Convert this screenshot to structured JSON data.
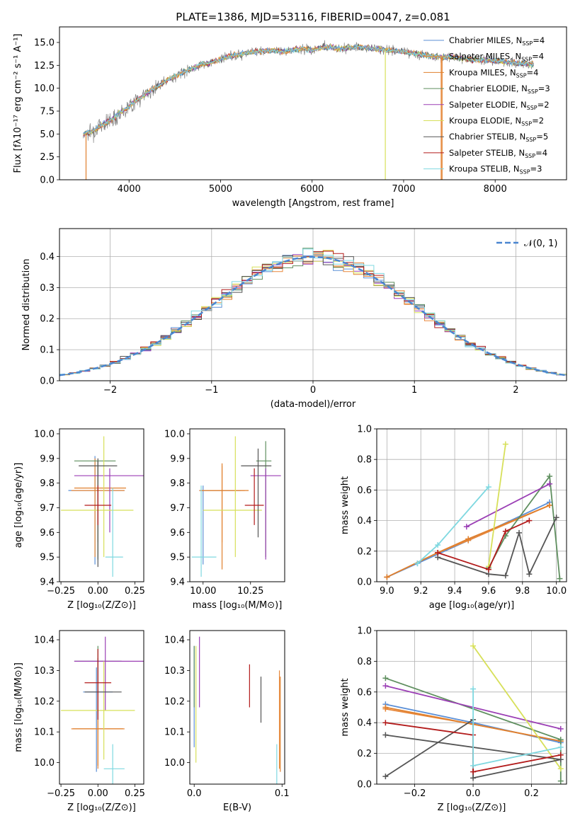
{
  "figure": {
    "title": "PLATE=1386, MJD=53116, FIBERID=0047, z=0.081"
  },
  "colors": [
    "#5b8fd6",
    "#e8873a",
    "#e0802e",
    "#5f8f5f",
    "#9b3fb5",
    "#d7e05a",
    "#555555",
    "#b31b1b",
    "#7fd8e0"
  ],
  "chart_data": [
    {
      "id": "spectrum",
      "type": "line",
      "xlabel": "wavelength [Angstrom, rest frame]",
      "ylabel": "Flux [fλ10⁻¹⁷ erg cm⁻² s⁻¹ A⁻¹]",
      "xlim": [
        3240,
        8780
      ],
      "ylim": [
        0,
        16.7
      ],
      "xticks": [
        4000,
        5000,
        6000,
        7000,
        8000
      ],
      "yticks": [
        0.0,
        2.5,
        5.0,
        7.5,
        10.0,
        12.5,
        15.0
      ],
      "x": [
        3500,
        3600,
        3700,
        3800,
        3900,
        4000,
        4100,
        4200,
        4300,
        4400,
        4500,
        4600,
        4700,
        4800,
        4900,
        5000,
        5100,
        5200,
        5300,
        5400,
        5500,
        5600,
        5700,
        5800,
        5900,
        6000,
        6100,
        6200,
        6300,
        6400,
        6500,
        6600,
        6700,
        6800,
        6900,
        7000,
        7100,
        7200,
        7300,
        7400,
        7500,
        7600,
        7700,
        7800,
        7900,
        8000,
        8100,
        8200,
        8300,
        8400
      ],
      "y": [
        5.0,
        5.3,
        6.0,
        6.5,
        7.3,
        8.0,
        8.8,
        9.5,
        10.1,
        10.8,
        11.3,
        11.8,
        12.2,
        12.6,
        12.8,
        13.2,
        13.5,
        13.7,
        13.9,
        14.0,
        14.1,
        14.1,
        14.0,
        14.2,
        14.3,
        14.2,
        14.4,
        14.5,
        14.3,
        14.4,
        14.5,
        14.4,
        14.3,
        14.2,
        14.1,
        14.0,
        13.8,
        13.7,
        13.5,
        13.4,
        13.4,
        13.3,
        13.2,
        13.1,
        13.1,
        13.0,
        12.9,
        12.8,
        12.7,
        12.6
      ],
      "legend_position": "right",
      "legend": [
        {
          "label": "Chabrier MILES, N",
          "sub": "SSP",
          "eq": "=4"
        },
        {
          "label": "Salpeter MILES, N",
          "sub": "SSP",
          "eq": "=4"
        },
        {
          "label": "Kroupa MILES, N",
          "sub": "SSP",
          "eq": "=4"
        },
        {
          "label": "Chabrier ELODIE, N",
          "sub": "SSP",
          "eq": "=3"
        },
        {
          "label": "Salpeter ELODIE, N",
          "sub": "SSP",
          "eq": "=2"
        },
        {
          "label": "Kroupa ELODIE, N",
          "sub": "SSP",
          "eq": "=2"
        },
        {
          "label": "Chabrier STELIB, N",
          "sub": "SSP",
          "eq": "=5"
        },
        {
          "label": "Salpeter STELIB, N",
          "sub": "SSP",
          "eq": "=4"
        },
        {
          "label": "Kroupa STELIB, N",
          "sub": "SSP",
          "eq": "=3"
        }
      ]
    },
    {
      "id": "residuals",
      "type": "line",
      "xlabel": "(data-model)/error",
      "ylabel": "Normed distribution",
      "xlim": [
        -2.5,
        2.5
      ],
      "ylim": [
        0,
        0.49
      ],
      "xticks": [
        -2,
        -1,
        0,
        1,
        2
      ],
      "xtick_labels": [
        "−2",
        "−1",
        "0",
        "1",
        "2"
      ],
      "yticks": [
        0.0,
        0.1,
        0.2,
        0.3,
        0.4
      ],
      "legend": "𝒩(0, 1)",
      "legend_position": "top-right",
      "grid": true
    },
    {
      "id": "z-age",
      "type": "scatter",
      "xlabel": "Z [log₁₀(Z/Z⊙)]",
      "ylabel": "age  [log₁₀(age/yr)]",
      "xlim": [
        -0.26,
        0.31
      ],
      "ylim": [
        9.4,
        10.02
      ],
      "xticks": [
        -0.25,
        0.0,
        0.25
      ],
      "xtick_labels": [
        "−0.25",
        "0.00",
        "0.25"
      ],
      "yticks": [
        9.4,
        9.5,
        9.6,
        9.7,
        9.8,
        9.9,
        10.0
      ],
      "points": [
        {
          "x": -0.02,
          "y": 9.77,
          "xe": [
            -0.2,
            0.18
          ],
          "ye": [
            9.47,
            9.91
          ]
        },
        {
          "x": 0.0,
          "y": 9.77,
          "xe": [
            -0.18,
            0.18
          ],
          "ye": [
            9.56,
            9.89
          ]
        },
        {
          "x": -0.02,
          "y": 9.78,
          "xe": [
            -0.16,
            0.19
          ],
          "ye": [
            9.5,
            9.9
          ]
        },
        {
          "x": 0.0,
          "y": 9.89,
          "xe": [
            -0.16,
            0.12
          ],
          "ye": [
            9.49,
            9.89
          ]
        },
        {
          "x": 0.08,
          "y": 9.83,
          "xe": [
            -0.16,
            0.31
          ],
          "ye": [
            9.6,
            9.86
          ]
        },
        {
          "x": 0.04,
          "y": 9.69,
          "xe": [
            -0.25,
            0.24
          ],
          "ye": [
            9.5,
            9.99
          ]
        },
        {
          "x": 0.0,
          "y": 9.87,
          "xe": [
            -0.13,
            0.13
          ],
          "ye": [
            9.46,
            9.9
          ]
        },
        {
          "x": 0.0,
          "y": 9.71,
          "xe": [
            -0.09,
            0.09
          ],
          "ye": [
            9.63,
            9.79
          ]
        },
        {
          "x": 0.1,
          "y": 9.5,
          "xe": [
            0.05,
            0.17
          ],
          "ye": [
            9.42,
            9.78
          ]
        }
      ]
    },
    {
      "id": "mass-age",
      "type": "scatter",
      "xlabel": "mass [log₁₀(M/M⊙)]",
      "xlim": [
        9.93,
        10.43
      ],
      "ylim": [
        9.4,
        10.02
      ],
      "xticks": [
        10.0,
        10.25
      ],
      "xtick_labels": [
        "10.00",
        "10.25"
      ],
      "yticks": [
        9.4,
        9.5,
        9.6,
        9.7,
        9.8,
        9.9,
        10.0
      ],
      "points": [
        {
          "x": 10.0,
          "y": 9.77,
          "xe": [
            9.98,
            10.2
          ],
          "ye": [
            9.47,
            9.79
          ]
        },
        {
          "x": 10.1,
          "y": 9.77,
          "xe": [
            9.98,
            10.22
          ],
          "ye": [
            9.56,
            9.87
          ]
        },
        {
          "x": 10.1,
          "y": 9.77,
          "xe": [
            9.99,
            10.24
          ],
          "ye": [
            9.45,
            9.88
          ]
        },
        {
          "x": 10.33,
          "y": 9.89,
          "xe": [
            10.28,
            10.36
          ],
          "ye": [
            9.5,
            9.97
          ]
        },
        {
          "x": 10.33,
          "y": 9.83,
          "xe": [
            10.25,
            10.41
          ],
          "ye": [
            9.49,
            9.86
          ]
        },
        {
          "x": 10.17,
          "y": 9.69,
          "xe": [
            10.0,
            10.31
          ],
          "ye": [
            9.5,
            9.99
          ]
        },
        {
          "x": 10.29,
          "y": 9.87,
          "xe": [
            10.2,
            10.36
          ],
          "ye": [
            9.58,
            9.94
          ]
        },
        {
          "x": 10.27,
          "y": 9.71,
          "xe": [
            10.22,
            10.32
          ],
          "ye": [
            9.63,
            9.86
          ]
        },
        {
          "x": 9.99,
          "y": 9.5,
          "xe": [
            9.94,
            10.07
          ],
          "ye": [
            9.42,
            9.79
          ]
        }
      ]
    },
    {
      "id": "age-weight",
      "type": "line",
      "xlabel": "age  [log₁₀(age/yr)]",
      "ylabel": "mass weight",
      "xlim": [
        8.94,
        10.06
      ],
      "ylim": [
        0,
        1.0
      ],
      "xticks": [
        9.0,
        9.2,
        9.4,
        9.6,
        9.8,
        10.0
      ],
      "xtick_labels": [
        "9.0",
        "9.2",
        "9.4",
        "9.6",
        "9.8",
        "10.0"
      ],
      "yticks": [
        0.0,
        0.2,
        0.4,
        0.6,
        0.8,
        1.0
      ],
      "grid": true,
      "series": [
        {
          "x": [
            9.0,
            9.18,
            9.48,
            9.96
          ],
          "y": [
            0.03,
            0.12,
            0.27,
            0.52
          ]
        },
        {
          "x": [
            9.0,
            9.3,
            9.48,
            9.96
          ],
          "y": [
            0.03,
            0.19,
            0.27,
            0.5
          ]
        },
        {
          "x": [
            9.0,
            9.3,
            9.48,
            9.96
          ],
          "y": [
            0.03,
            0.19,
            0.28,
            0.5
          ]
        },
        {
          "x": [
            9.6,
            9.7,
            9.96,
            10.02
          ],
          "y": [
            0.09,
            0.3,
            0.69,
            0.02
          ]
        },
        {
          "x": [
            9.47,
            9.96
          ],
          "y": [
            0.36,
            0.64
          ]
        },
        {
          "x": [
            9.6,
            9.7
          ],
          "y": [
            0.1,
            0.9
          ]
        },
        {
          "x": [
            9.3,
            9.6,
            9.7,
            9.78,
            9.84,
            10.0
          ],
          "y": [
            0.16,
            0.05,
            0.04,
            0.32,
            0.05,
            0.42
          ]
        },
        {
          "x": [
            9.3,
            9.6,
            9.7,
            9.84
          ],
          "y": [
            0.19,
            0.08,
            0.33,
            0.4
          ]
        },
        {
          "x": [
            9.18,
            9.3,
            9.6
          ],
          "y": [
            0.12,
            0.24,
            0.62
          ]
        }
      ]
    },
    {
      "id": "z-mass",
      "type": "scatter",
      "xlabel": "Z [log₁₀(Z/Z⊙)]",
      "ylabel": "mass [log₁₀(M/M⊙)]",
      "xlim": [
        -0.26,
        0.31
      ],
      "ylim": [
        9.93,
        10.43
      ],
      "xticks": [
        -0.25,
        0.0,
        0.25
      ],
      "xtick_labels": [
        "−0.25",
        "0.00",
        "0.25"
      ],
      "yticks": [
        10.0,
        10.1,
        10.2,
        10.3,
        10.4
      ],
      "points": [
        {
          "x": -0.01,
          "y": 10.23,
          "xe": [
            -0.1,
            0.1
          ],
          "ye": [
            9.97,
            10.31
          ]
        },
        {
          "x": 0.0,
          "y": 10.11,
          "xe": [
            -0.18,
            0.18
          ],
          "ye": [
            9.98,
            10.31
          ]
        },
        {
          "x": 0.0,
          "y": 10.11,
          "xe": [
            -0.17,
            0.17
          ],
          "ye": [
            9.99,
            10.3
          ]
        },
        {
          "x": 0.0,
          "y": 10.33,
          "xe": [
            -0.16,
            0.16
          ],
          "ye": [
            10.22,
            10.38
          ]
        },
        {
          "x": 0.05,
          "y": 10.33,
          "xe": [
            -0.16,
            0.31
          ],
          "ye": [
            10.17,
            10.41
          ]
        },
        {
          "x": 0.04,
          "y": 10.17,
          "xe": [
            -0.25,
            0.25
          ],
          "ye": [
            10.01,
            10.33
          ]
        },
        {
          "x": 0.0,
          "y": 10.23,
          "xe": [
            -0.09,
            0.16
          ],
          "ye": [
            10.14,
            10.34
          ]
        },
        {
          "x": 0.0,
          "y": 10.26,
          "xe": [
            -0.09,
            0.09
          ],
          "ye": [
            10.14,
            10.37
          ]
        },
        {
          "x": 0.1,
          "y": 9.98,
          "xe": [
            0.04,
            0.18
          ],
          "ye": [
            9.93,
            10.06
          ]
        }
      ]
    },
    {
      "id": "ebv-mass",
      "type": "scatter",
      "xlabel": "E(B-V)",
      "xlim": [
        -0.005,
        0.103
      ],
      "ylim": [
        9.93,
        10.43
      ],
      "xticks": [
        0.0,
        0.1
      ],
      "xtick_labels": [
        "0.0",
        "0.1"
      ],
      "yticks": [
        10.0,
        10.1,
        10.2,
        10.3,
        10.4
      ],
      "points": [
        {
          "x": 0.0,
          "y": 10.23,
          "ye": [
            10.05,
            10.38
          ]
        },
        {
          "x": 0.097,
          "y": 10.11,
          "ye": [
            9.98,
            10.3
          ]
        },
        {
          "x": 0.098,
          "y": 10.11,
          "ye": [
            9.97,
            10.28
          ]
        },
        {
          "x": 0.0,
          "y": 10.33,
          "ye": [
            10.18,
            10.38
          ]
        },
        {
          "x": 0.006,
          "y": 10.33,
          "ye": [
            10.18,
            10.41
          ]
        },
        {
          "x": 0.002,
          "y": 10.17,
          "ye": [
            10.0,
            10.38
          ]
        },
        {
          "x": 0.076,
          "y": 10.23,
          "ye": [
            10.13,
            10.28
          ]
        },
        {
          "x": 0.063,
          "y": 10.26,
          "ye": [
            10.18,
            10.32
          ]
        },
        {
          "x": 0.094,
          "y": 9.98,
          "ye": [
            9.93,
            10.06
          ]
        }
      ]
    },
    {
      "id": "z-weight",
      "type": "line",
      "xlabel": "Z [log₁₀(Z/Z⊙)]",
      "ylabel": "mass weight",
      "xlim": [
        -0.33,
        0.32
      ],
      "ylim": [
        0,
        1.0
      ],
      "xticks": [
        -0.2,
        0.0,
        0.2
      ],
      "xtick_labels": [
        "−0.2",
        "0.0",
        "0.2"
      ],
      "yticks": [
        0.0,
        0.2,
        0.4,
        0.6,
        0.8,
        1.0
      ],
      "grid": true,
      "series": [
        {
          "x": [
            -0.3,
            0.0,
            0.3
          ],
          "y": [
            0.52,
            0.4,
            0.27
          ]
        },
        {
          "x": [
            -0.3,
            0.0,
            0.3
          ],
          "y": [
            0.49,
            0.39,
            0.28
          ]
        },
        {
          "x": [
            -0.3,
            0.0,
            0.3
          ],
          "y": [
            0.5,
            0.39,
            0.28
          ]
        },
        {
          "x": [
            -0.3,
            0.3,
            0.3
          ],
          "y": [
            0.69,
            0.29,
            0.02
          ]
        },
        {
          "x": [
            -0.3,
            0.3
          ],
          "y": [
            0.64,
            0.36
          ]
        },
        {
          "x": [
            0.0,
            0.3
          ],
          "y": [
            0.9,
            0.1
          ]
        },
        {
          "x": [
            -0.3,
            0.0,
            0.0,
            0.3,
            -0.3
          ],
          "y": [
            0.05,
            0.42,
            0.04,
            0.16,
            0.32
          ]
        },
        {
          "x": [
            -0.3,
            0.0,
            0.0,
            0.3
          ],
          "y": [
            0.4,
            0.32,
            0.08,
            0.19
          ]
        },
        {
          "x": [
            0.0,
            0.0,
            0.3
          ],
          "y": [
            0.62,
            0.12,
            0.24
          ]
        }
      ]
    }
  ]
}
